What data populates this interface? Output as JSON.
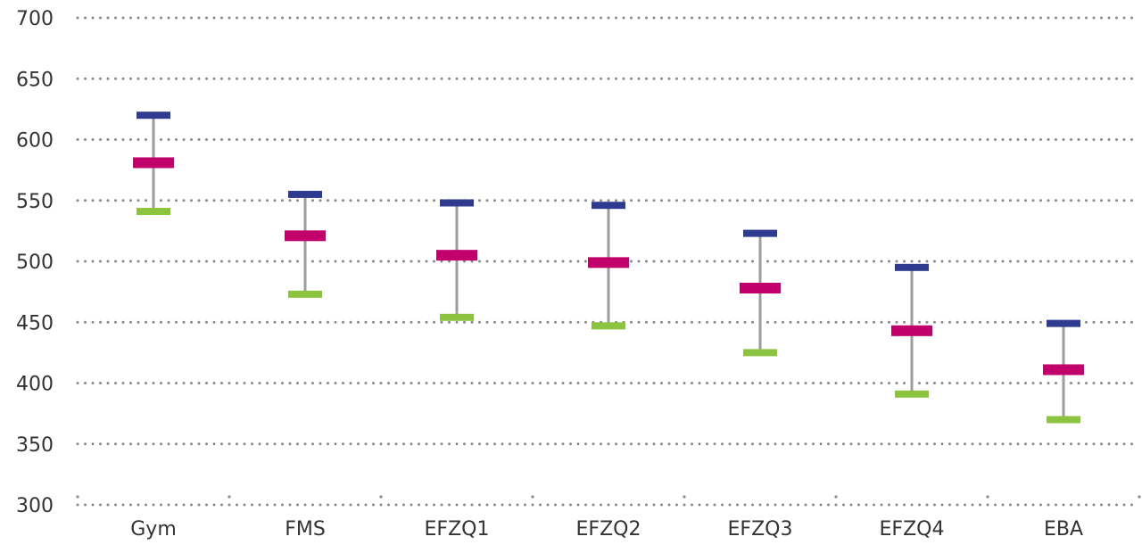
{
  "chart_data": {
    "type": "range",
    "title": "",
    "xlabel": "",
    "ylabel": "",
    "ylim": [
      300,
      700
    ],
    "yticks": [
      300,
      350,
      400,
      450,
      500,
      550,
      600,
      650,
      700
    ],
    "grid": true,
    "categories": [
      "Gym",
      "FMS",
      "EFZQ1",
      "EFZQ2",
      "EFZQ3",
      "EFZQ4",
      "EBA"
    ],
    "series": [
      {
        "name": "high",
        "color": "#2e3b8f",
        "values": [
          620,
          555,
          548,
          546,
          523,
          495,
          449
        ]
      },
      {
        "name": "mean",
        "color": "#c2006b",
        "values": [
          581,
          521,
          505,
          499,
          478,
          443,
          411
        ]
      },
      {
        "name": "low",
        "color": "#8cc43f",
        "values": [
          541,
          473,
          454,
          447,
          425,
          391,
          370
        ]
      }
    ],
    "whisker_color": "#9d9d9d",
    "grid_color": "#8a8a8a"
  }
}
